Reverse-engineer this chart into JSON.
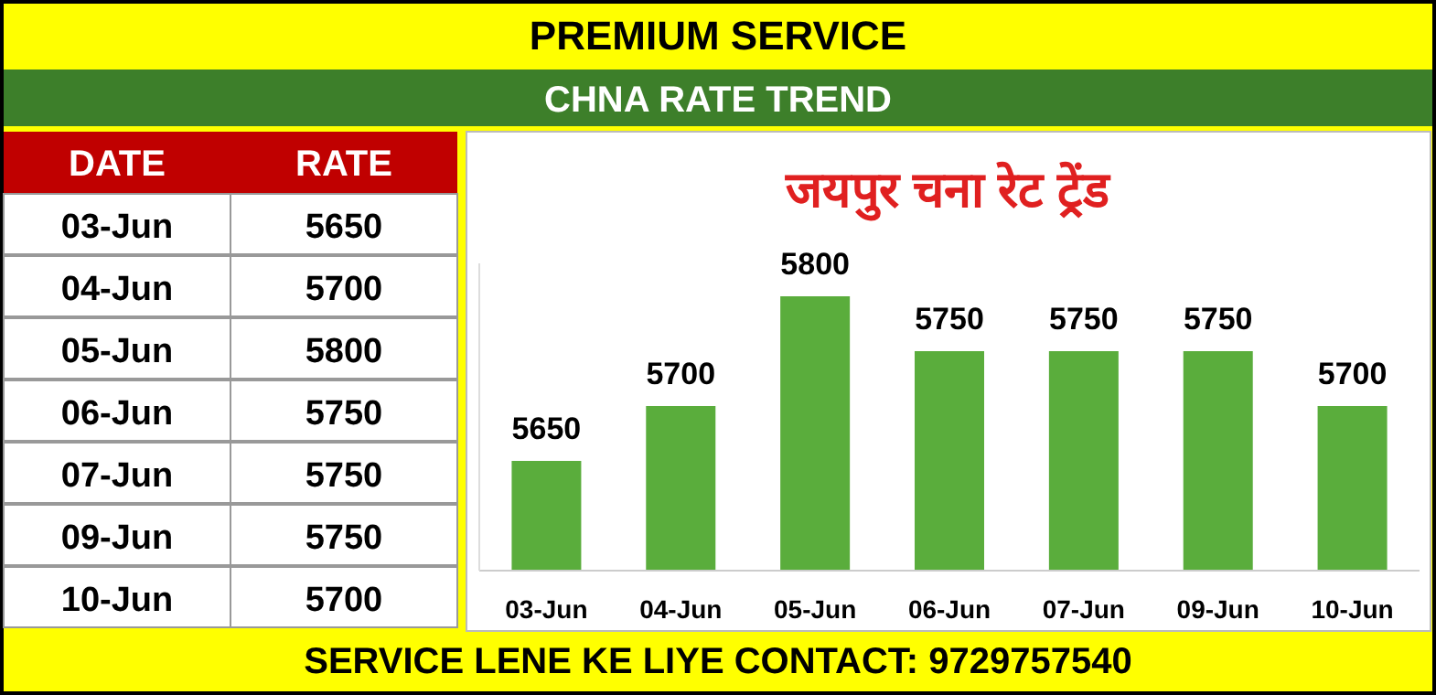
{
  "chart_data": [
    {
      "type": "other",
      "xlabel": "DATE",
      "ylabel": "RATE",
      "categories": [
        "03-Jun",
        "04-Jun",
        "05-Jun",
        "06-Jun",
        "07-Jun",
        "09-Jun",
        "10-Jun"
      ],
      "values": [
        5650,
        5700,
        5800,
        5750,
        5750,
        5750,
        5700
      ],
      "data_labels": true
    },
    {
      "type": "bar",
      "title": "जयपुर चना रेट ट्रेंड",
      "subtitle": "CHNA RATE TREND",
      "annotations": [
        "PREMIUM SERVICE",
        "SERVICE LENE KE LIYE CONTACT: 9729757540"
      ],
      "categories": [
        "03-Jun",
        "04-Jun",
        "05-Jun",
        "06-Jun",
        "07-Jun",
        "09-Jun",
        "10-Jun"
      ],
      "values": [
        5650,
        5700,
        5800,
        5750,
        5750,
        5750,
        5700
      ],
      "color": "#5aad3c",
      "ylim": [
        5550,
        5830
      ],
      "tick_labels": "x",
      "data_labels": true
    }
  ]
}
